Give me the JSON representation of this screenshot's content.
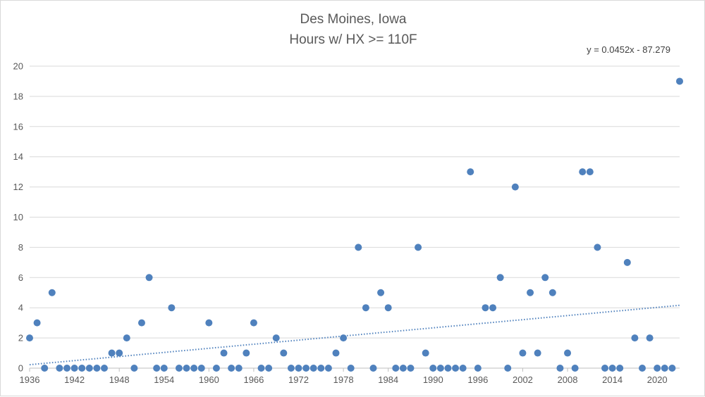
{
  "chart_data": {
    "type": "scatter",
    "title": "Des Moines, Iowa",
    "subtitle": "Hours w/ HX >= 110F",
    "xlim": [
      1936,
      2023
    ],
    "ylim": [
      0,
      20
    ],
    "x_ticks": [
      1936,
      1942,
      1948,
      1954,
      1960,
      1966,
      1972,
      1978,
      1984,
      1990,
      1996,
      2002,
      2008,
      2014,
      2020
    ],
    "y_ticks": [
      0,
      2,
      4,
      6,
      8,
      10,
      12,
      14,
      16,
      18,
      20
    ],
    "grid": "horizontal",
    "legend": "none",
    "marker_color": "#4f81bd",
    "series": [
      {
        "x": [
          1936,
          1937,
          1938,
          1939,
          1940,
          1941,
          1942,
          1943,
          1944,
          1945,
          1946,
          1947,
          1948,
          1949,
          1950,
          1951,
          1952,
          1953,
          1954,
          1955,
          1956,
          1957,
          1958,
          1959,
          1960,
          1961,
          1962,
          1963,
          1964,
          1965,
          1966,
          1967,
          1968,
          1969,
          1970,
          1971,
          1972,
          1973,
          1974,
          1975,
          1976,
          1977,
          1978,
          1979,
          1980,
          1981,
          1982,
          1983,
          1984,
          1985,
          1986,
          1987,
          1988,
          1989,
          1990,
          1991,
          1992,
          1993,
          1994,
          1995,
          1996,
          1997,
          1998,
          1999,
          2000,
          2001,
          2002,
          2003,
          2004,
          2005,
          2006,
          2007,
          2008,
          2009,
          2010,
          2011,
          2012,
          2013,
          2014,
          2015,
          2016,
          2017,
          2018,
          2019,
          2020,
          2021,
          2022,
          2023
        ],
        "y": [
          2,
          3,
          0,
          5,
          0,
          0,
          0,
          0,
          0,
          0,
          0,
          1,
          1,
          2,
          0,
          3,
          6,
          0,
          0,
          4,
          0,
          0,
          0,
          0,
          3,
          0,
          1,
          0,
          0,
          1,
          3,
          0,
          0,
          2,
          1,
          0,
          0,
          0,
          0,
          0,
          0,
          1,
          2,
          0,
          8,
          4,
          0,
          5,
          4,
          0,
          0,
          0,
          8,
          1,
          0,
          0,
          0,
          0,
          0,
          13,
          0,
          4,
          4,
          6,
          0,
          12,
          1,
          5,
          1,
          6,
          5,
          0,
          1,
          0,
          13,
          13,
          8,
          0,
          0,
          0,
          7,
          2,
          0,
          2,
          0,
          0,
          0,
          19
        ]
      }
    ],
    "trendline": {
      "type": "linear",
      "slope": 0.0452,
      "intercept": -87.279,
      "equation_label": "y = 0.0452x - 87.279",
      "style": "dotted",
      "color": "#4f81bd"
    }
  }
}
